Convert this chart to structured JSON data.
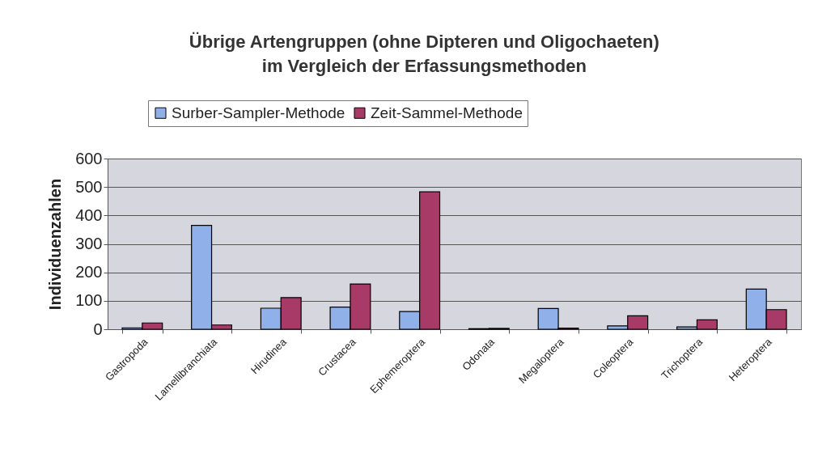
{
  "chart_data": {
    "type": "bar",
    "title": "Übrige Artengruppen (ohne Dipteren und Oligochaeten)\nim Vergleich der Erfassungsmethoden",
    "ylabel": "Individuenzahlen",
    "categories": [
      "Gastropoda",
      "Lamellibranchiata",
      "Hirudinea",
      "Crustacea",
      "Ephemeroptera",
      "Odonata",
      "Megaloptera",
      "Coleoptera",
      "Trichoptera",
      "Heteroptera"
    ],
    "series": [
      {
        "name": "Surber-Sampler-Methode",
        "color": "#8fb0e8",
        "values": [
          5,
          365,
          74,
          78,
          62,
          2,
          73,
          12,
          8,
          141
        ]
      },
      {
        "name": "Zeit-Sammel-Methode",
        "color": "#a83a68",
        "values": [
          22,
          15,
          111,
          159,
          483,
          3,
          4,
          47,
          33,
          69
        ]
      }
    ],
    "ylim": [
      0,
      600
    ],
    "yticks": [
      0,
      100,
      200,
      300,
      400,
      500,
      600
    ],
    "grid": "y",
    "legend": "top"
  }
}
